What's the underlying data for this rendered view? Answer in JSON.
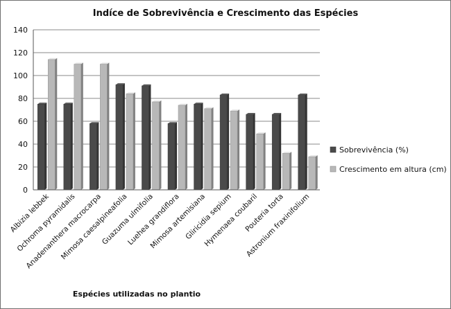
{
  "chart_data": {
    "type": "bar",
    "title": "Indíce de Sobrevivência  e Crescimento das Espécies",
    "xlabel": "Espécies utilizadas no plantio",
    "ylabel": "",
    "ylim": [
      0,
      140
    ],
    "yticks": [
      0,
      20,
      40,
      60,
      80,
      100,
      120,
      140
    ],
    "grid": true,
    "legend_position": "right",
    "categories": [
      "Albizia lebbek",
      "Ochroma pyramidalis",
      "Anadenanthera macrocarpa",
      "Mimosa caesalpineafolia",
      "Guazuma ulmifolia",
      "Luehea grandiflora",
      "Mimosa artemisiana",
      "Gliricidia sepium",
      "Hymenaea coubaril",
      "Pouteria torta",
      "Astronium fraxinifolium"
    ],
    "series": [
      {
        "name": "Sobrevivência (%)",
        "color": "#4a4a4a",
        "values": [
          75,
          75,
          58,
          92,
          91,
          58,
          75,
          83,
          66,
          66,
          83
        ]
      },
      {
        "name": "Crescimento em altura (cm)",
        "color": "#b8b8b8",
        "values": [
          114,
          110,
          110,
          84,
          77,
          74,
          71,
          69,
          49,
          32,
          29
        ]
      }
    ]
  }
}
